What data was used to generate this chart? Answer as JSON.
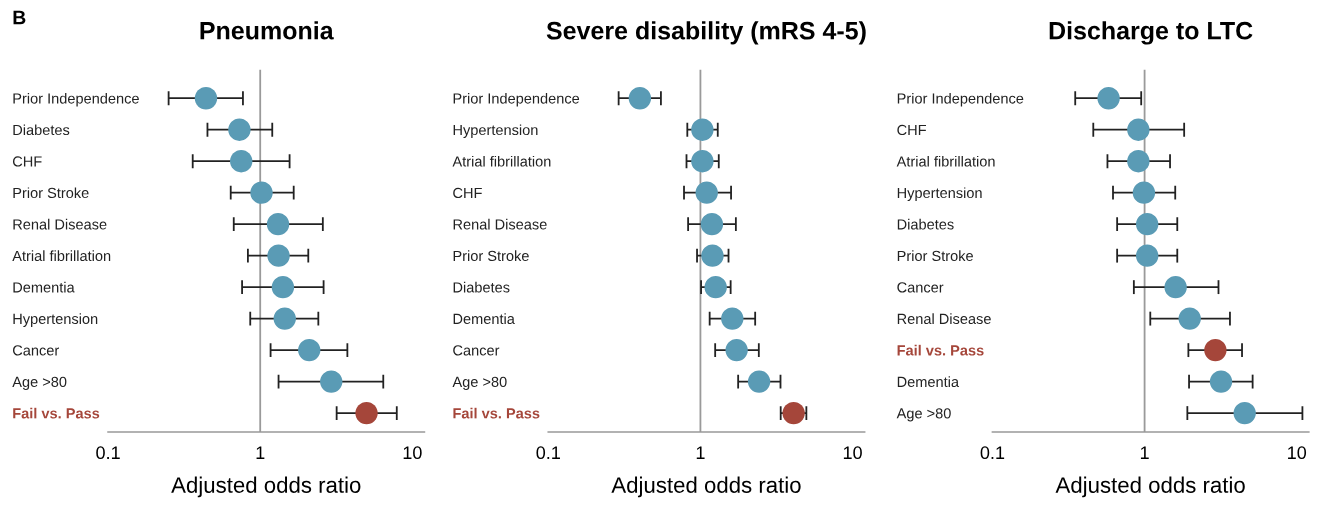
{
  "chart_data": [
    {
      "type": "scatter",
      "orientation": "horizontal",
      "title": "Pneumonia",
      "xlabel": "Adjusted odds ratio",
      "annotations": [
        "B"
      ],
      "log": "x",
      "marker": "circle",
      "xlim": [
        0.1,
        12
      ],
      "xticks": [
        0.1,
        1,
        10
      ],
      "categories": [
        "Prior Independence",
        "Diabetes",
        "CHF",
        "Prior Stroke",
        "Renal Disease",
        "Atrial fibrillation",
        "Dementia",
        "Hypertension",
        "Cancer",
        "Age >80",
        "Fail vs. Pass"
      ],
      "values": [
        0.44,
        0.73,
        0.75,
        1.02,
        1.31,
        1.32,
        1.41,
        1.45,
        2.1,
        2.93,
        5.0
      ],
      "errors": [
        [
          0.25,
          0.77
        ],
        [
          0.45,
          1.2
        ],
        [
          0.36,
          1.56
        ],
        [
          0.64,
          1.66
        ],
        [
          0.67,
          2.58
        ],
        [
          0.83,
          2.07
        ],
        [
          0.76,
          2.61
        ],
        [
          0.86,
          2.41
        ],
        [
          1.17,
          3.74
        ],
        [
          1.32,
          6.44
        ],
        [
          3.18,
          7.9
        ]
      ],
      "colors": [
        "#5a9bb5",
        "#5a9bb5",
        "#5a9bb5",
        "#5a9bb5",
        "#5a9bb5",
        "#5a9bb5",
        "#5a9bb5",
        "#5a9bb5",
        "#5a9bb5",
        "#5a9bb5",
        "#a5463a"
      ],
      "ref_lines": [
        {
          "axis": "x",
          "value": 1,
          "color": "#9a9a9a"
        }
      ]
    },
    {
      "type": "scatter",
      "orientation": "horizontal",
      "title": "Severe disability (mRS 4-5)",
      "xlabel": "Adjusted odds ratio",
      "log": "x",
      "marker": "circle",
      "xlim": [
        0.1,
        12
      ],
      "xticks": [
        0.1,
        1,
        10
      ],
      "categories": [
        "Prior Independence",
        "Hypertension",
        "Atrial fibrillation",
        "CHF",
        "Renal Disease",
        "Prior Stroke",
        "Diabetes",
        "Dementia",
        "Cancer",
        "Age >80",
        "Fail vs. Pass"
      ],
      "values": [
        0.4,
        1.03,
        1.03,
        1.1,
        1.19,
        1.2,
        1.26,
        1.62,
        1.73,
        2.43,
        4.1
      ],
      "errors": [
        [
          0.29,
          0.55
        ],
        [
          0.82,
          1.3
        ],
        [
          0.81,
          1.32
        ],
        [
          0.78,
          1.59
        ],
        [
          0.83,
          1.71
        ],
        [
          0.95,
          1.53
        ],
        [
          1.01,
          1.58
        ],
        [
          1.15,
          2.29
        ],
        [
          1.25,
          2.42
        ],
        [
          1.77,
          3.36
        ],
        [
          3.37,
          4.97
        ]
      ],
      "colors": [
        "#5a9bb5",
        "#5a9bb5",
        "#5a9bb5",
        "#5a9bb5",
        "#5a9bb5",
        "#5a9bb5",
        "#5a9bb5",
        "#5a9bb5",
        "#5a9bb5",
        "#5a9bb5",
        "#a5463a"
      ],
      "ref_lines": [
        {
          "axis": "x",
          "value": 1,
          "color": "#9a9a9a"
        }
      ]
    },
    {
      "type": "scatter",
      "orientation": "horizontal",
      "title": "Discharge to LTC",
      "xlabel": "Adjusted odds ratio",
      "log": "x",
      "marker": "circle",
      "xlim": [
        0.1,
        12
      ],
      "xticks": [
        0.1,
        1,
        10
      ],
      "categories": [
        "Prior Independence",
        "CHF",
        "Atrial fibrillation",
        "Hypertension",
        "Diabetes",
        "Prior Stroke",
        "Cancer",
        "Renal Disease",
        "Fail vs. Pass",
        "Dementia",
        "Age >80"
      ],
      "values": [
        0.58,
        0.91,
        0.91,
        0.99,
        1.04,
        1.04,
        1.6,
        1.98,
        2.92,
        3.18,
        4.55
      ],
      "errors": [
        [
          0.35,
          0.95
        ],
        [
          0.46,
          1.82
        ],
        [
          0.57,
          1.47
        ],
        [
          0.62,
          1.59
        ],
        [
          0.66,
          1.64
        ],
        [
          0.66,
          1.64
        ],
        [
          0.85,
          3.06
        ],
        [
          1.09,
          3.64
        ],
        [
          1.94,
          4.37
        ],
        [
          1.96,
          5.13
        ],
        [
          1.91,
          10.9
        ]
      ],
      "colors": [
        "#5a9bb5",
        "#5a9bb5",
        "#5a9bb5",
        "#5a9bb5",
        "#5a9bb5",
        "#5a9bb5",
        "#5a9bb5",
        "#5a9bb5",
        "#a5463a",
        "#5a9bb5",
        "#5a9bb5"
      ],
      "ref_lines": [
        {
          "axis": "x",
          "value": 1,
          "color": "#9a9a9a"
        }
      ]
    }
  ]
}
